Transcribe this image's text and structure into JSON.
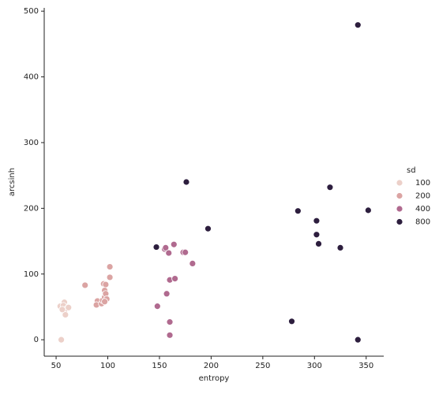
{
  "chart_data": {
    "type": "scatter",
    "x_label": "entropy",
    "y_label": "arcsinh",
    "legend_title": "sd",
    "legend_position": "right",
    "xlim": [
      38.5,
      367
    ],
    "ylim": [
      -25,
      505
    ],
    "xticks": [
      50,
      100,
      150,
      200,
      250,
      300,
      350
    ],
    "yticks": [
      0,
      100,
      200,
      300,
      400,
      500
    ],
    "series": [
      {
        "name": "100",
        "color": "#ecd0c9",
        "x": [
          55,
          54,
          58,
          57,
          59,
          61,
          58,
          59,
          62,
          56
        ],
        "values": [
          0,
          51,
          57,
          52,
          45,
          48,
          43,
          38,
          49,
          46
        ]
      },
      {
        "name": "200",
        "color": "#dba4a3",
        "x": [
          78,
          90,
          89,
          94,
          95,
          97,
          96,
          98,
          97,
          98,
          99,
          97,
          102,
          102
        ],
        "values": [
          83,
          59,
          53,
          55,
          60,
          65,
          85,
          84,
          75,
          70,
          62,
          58,
          95,
          111
        ]
      },
      {
        "name": "400",
        "color": "#b06a8f",
        "x": [
          148,
          155,
          156,
          159,
          160,
          160,
          160,
          157,
          165,
          164,
          173,
          175,
          182
        ],
        "values": [
          51,
          138,
          140,
          132,
          27,
          7,
          91,
          70,
          93,
          145,
          133,
          133,
          116
        ]
      },
      {
        "name": "800",
        "color": "#2d1e3e",
        "x": [
          147,
          176,
          197,
          278,
          284,
          302,
          302,
          304,
          315,
          325,
          342,
          342,
          352
        ],
        "values": [
          141,
          240,
          169,
          28,
          196,
          181,
          160,
          146,
          232,
          140,
          0,
          479,
          197
        ]
      }
    ]
  }
}
